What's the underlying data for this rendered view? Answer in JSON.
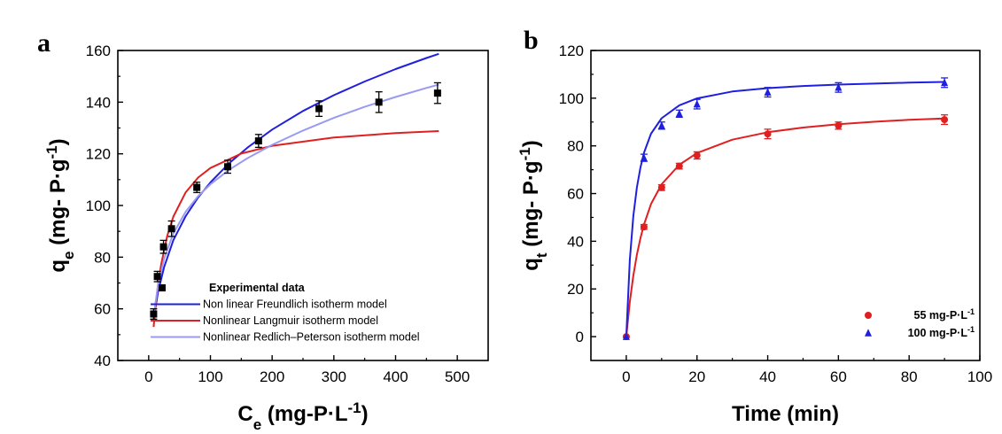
{
  "chart_data": [
    {
      "panel_label": "a",
      "type": "scatter",
      "xlabel": {
        "main": "C",
        "sub": "e",
        "rest": " (mg-P·L",
        "sup": "-1",
        "close": ")"
      },
      "ylabel": {
        "main": "q",
        "sub": "e",
        "rest": " (mg- P·g",
        "sup": "-1",
        "close": ")"
      },
      "xlim": [
        -50,
        550
      ],
      "ylim": [
        40,
        160
      ],
      "xticks": [
        0,
        100,
        200,
        300,
        400,
        500
      ],
      "yticks": [
        40,
        60,
        80,
        100,
        120,
        140,
        160
      ],
      "legend_position": "bottom-right",
      "series": [
        {
          "name": "Experimental data",
          "kind": "scatter",
          "marker": "square",
          "color": "#000000",
          "x": [
            8,
            14,
            24,
            37,
            78,
            128,
            178,
            276,
            373,
            468
          ],
          "y": [
            58,
            72.5,
            84,
            91,
            107,
            115,
            125,
            137.5,
            140,
            143.5
          ],
          "err": [
            2,
            2,
            2.5,
            3,
            2,
            2.5,
            2.5,
            3,
            4,
            4
          ]
        },
        {
          "name": "Non linear Freundlich isotherm model",
          "kind": "line",
          "color": "#1f1fe0",
          "x": [
            8,
            15,
            25,
            40,
            60,
            80,
            100,
            130,
            160,
            200,
            250,
            300,
            350,
            400,
            450,
            470
          ],
          "y": [
            55.7,
            66.4,
            76.2,
            86.6,
            95.9,
            103.1,
            108.9,
            116.3,
            122.4,
            129.4,
            136.6,
            142.7,
            148.0,
            152.8,
            157.1,
            158.7
          ]
        },
        {
          "name": "Nonlinear Langmuir isotherm model",
          "kind": "line",
          "color": "#e02020",
          "x": [
            8,
            12,
            15,
            20,
            30,
            40,
            60,
            80,
            100,
            150,
            200,
            300,
            400,
            470
          ],
          "y": [
            53.0,
            63.1,
            69.1,
            77.0,
            88.2,
            95.7,
            105.1,
            110.8,
            114.5,
            120.1,
            123.1,
            126.3,
            128.0,
            128.8
          ]
        },
        {
          "name": "Nonlinear Redlich–Peterson isotherm model",
          "kind": "line",
          "color": "#9a9af0",
          "x": [
            8,
            15,
            25,
            40,
            60,
            80,
            100,
            130,
            160,
            200,
            250,
            300,
            350,
            400,
            450,
            470
          ],
          "y": [
            57.0,
            69.0,
            79.5,
            89.2,
            97.6,
            103.6,
            108.2,
            113.8,
            118.3,
            123.5,
            129.0,
            133.9,
            138.2,
            142.0,
            145.5,
            146.8
          ]
        }
      ]
    },
    {
      "panel_label": "b",
      "type": "scatter",
      "xlabel": {
        "main": "Time (min)",
        "sub": "",
        "rest": "",
        "sup": "",
        "close": ""
      },
      "ylabel": {
        "main": "q",
        "sub": "t",
        "rest": " (mg- P·g",
        "sup": "-1",
        "close": ")"
      },
      "xlim": [
        -10,
        100
      ],
      "ylim": [
        -10,
        120
      ],
      "xticks": [
        0,
        20,
        40,
        60,
        80,
        100
      ],
      "yticks": [
        0,
        20,
        40,
        60,
        80,
        100,
        120
      ],
      "legend_position": "bottom-right",
      "series": [
        {
          "name": "55 mg-P·L",
          "name_sup": "-1",
          "kind": "scatter",
          "marker": "circle",
          "color": "#e02020",
          "x": [
            0,
            5,
            10,
            15,
            20,
            40,
            60,
            90
          ],
          "y": [
            0,
            46,
            62.5,
            71.5,
            76,
            85,
            88.5,
            91
          ],
          "err": [
            0,
            1,
            1.2,
            1.2,
            1.5,
            2,
            1.5,
            2
          ]
        },
        {
          "name": "100 mg-P·L",
          "name_sup": "-1",
          "kind": "scatter",
          "marker": "triangle",
          "color": "#1f1fe0",
          "x": [
            0,
            5,
            10,
            15,
            20,
            40,
            60,
            90
          ],
          "y": [
            0,
            75,
            88.5,
            93.5,
            97.5,
            102.5,
            104.5,
            106.5
          ],
          "err": [
            0,
            1.5,
            1.5,
            1.5,
            2,
            2,
            2,
            2
          ]
        },
        {
          "name": "",
          "kind": "line",
          "color": "#e02020",
          "x": [
            0,
            1,
            2,
            3,
            4,
            5,
            7,
            10,
            15,
            20,
            30,
            40,
            50,
            60,
            70,
            80,
            90
          ],
          "y": [
            0,
            14.6,
            25.7,
            34.4,
            41.3,
            47.0,
            55.6,
            63.9,
            72.1,
            77.0,
            82.6,
            85.7,
            87.7,
            89.1,
            90.1,
            90.9,
            91.5
          ]
        },
        {
          "name": "",
          "kind": "line",
          "color": "#1f1fe0",
          "x": [
            0,
            1,
            2,
            3,
            4,
            5,
            7,
            10,
            15,
            20,
            30,
            40,
            50,
            60,
            70,
            80,
            90
          ],
          "y": [
            0,
            32.2,
            50.7,
            62.6,
            70.9,
            77.1,
            85.1,
            91.6,
            97.0,
            99.9,
            102.8,
            104.2,
            105.1,
            105.7,
            106.1,
            106.5,
            106.8
          ]
        }
      ]
    }
  ]
}
